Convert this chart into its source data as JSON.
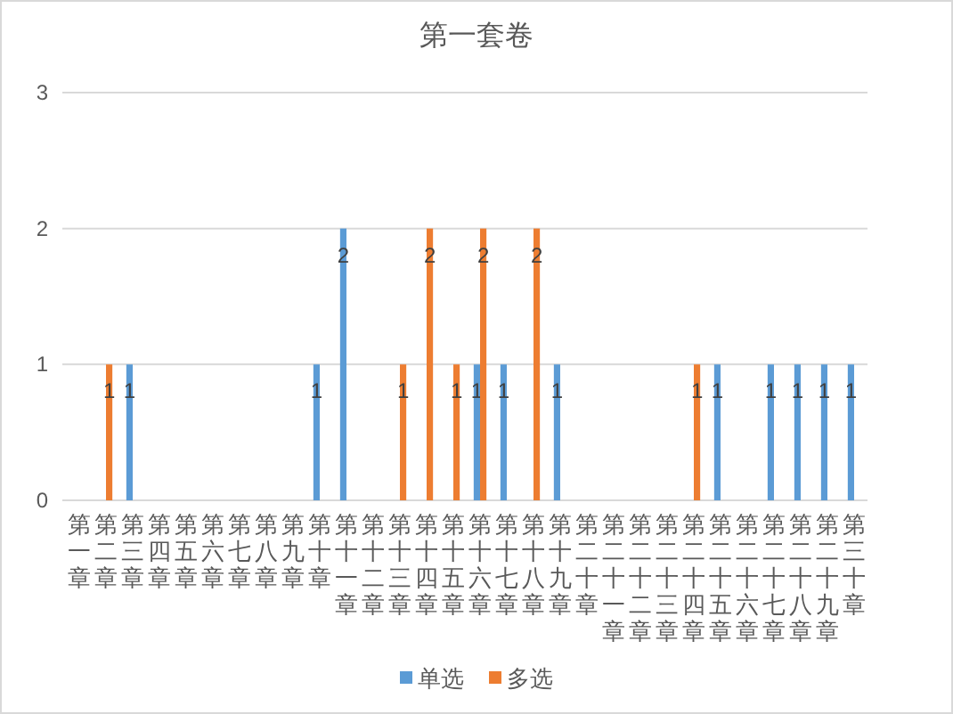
{
  "chart_data": {
    "type": "bar",
    "title": "第一套卷",
    "categories": [
      "第一章",
      "第二章",
      "第三章",
      "第四章",
      "第五章",
      "第六章",
      "第七章",
      "第八章",
      "第九章",
      "第十章",
      "第十一章",
      "第十二章",
      "第十三章",
      "第十四章",
      "第十五章",
      "第十六章",
      "第十七章",
      "第十八章",
      "第十九章",
      "第二十章",
      "第二十一章",
      "第二十二章",
      "第二十三章",
      "第二十四章",
      "第二十五章",
      "第二十六章",
      "第二十七章",
      "第二十八章",
      "第二十九章",
      "第三十章"
    ],
    "series": [
      {
        "name": "单选",
        "color": "#5b9bd5",
        "values": [
          null,
          null,
          1,
          null,
          null,
          null,
          null,
          null,
          null,
          1,
          2,
          null,
          null,
          null,
          null,
          1,
          1,
          null,
          1,
          null,
          null,
          null,
          null,
          null,
          1,
          null,
          1,
          1,
          1,
          1
        ]
      },
      {
        "name": "多选",
        "color": "#ed7d31",
        "values": [
          null,
          1,
          null,
          null,
          null,
          null,
          null,
          null,
          null,
          null,
          null,
          null,
          1,
          2,
          1,
          2,
          null,
          2,
          null,
          null,
          null,
          null,
          null,
          1,
          null,
          null,
          null,
          null,
          null,
          null
        ]
      }
    ],
    "ylim": [
      0,
      3
    ],
    "yticks": [
      0,
      1,
      2,
      3
    ],
    "grid": "y",
    "legend": "bottom",
    "data_labels": true
  }
}
